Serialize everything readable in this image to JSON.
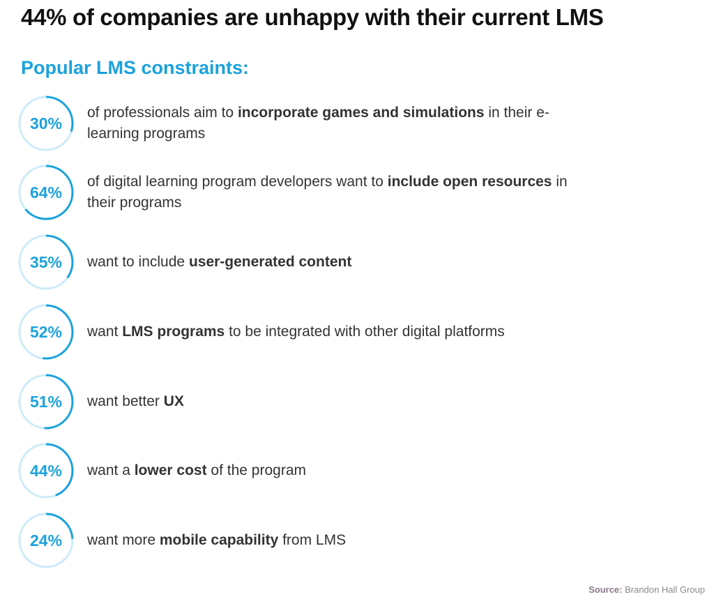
{
  "title": "44% of companies are unhappy with their current LMS",
  "subtitle": "Popular LMS constraints:",
  "colors": {
    "accent": "#1ba2dc",
    "ring_track": "#cdebf8",
    "text": "#333333"
  },
  "chart_data": {
    "type": "radial",
    "items": [
      {
        "label": "30%",
        "value": 30,
        "before": "of professionals aim to ",
        "bold": "incorporate games and simulations",
        "after": " in their e-learning programs"
      },
      {
        "label": "64%",
        "value": 64,
        "before": "of digital learning program developers want to ",
        "bold": "include open resources",
        "after": " in their programs"
      },
      {
        "label": "35%",
        "value": 35,
        "before": "want to include ",
        "bold": "user-generated content",
        "after": ""
      },
      {
        "label": "52%",
        "value": 52,
        "before": "want ",
        "bold": "LMS programs",
        "after": " to be integrated with other digital platforms"
      },
      {
        "label": "51%",
        "value": 51,
        "before": "want better ",
        "bold": "UX",
        "after": ""
      },
      {
        "label": "44%",
        "value": 44,
        "before": "want a ",
        "bold": "lower cost",
        "after": " of the program"
      },
      {
        "label": "24%",
        "value": 24,
        "before": "want more ",
        "bold": "mobile capability",
        "after": " from LMS"
      }
    ]
  },
  "source": {
    "label": "Source:",
    "text": " Brandon Hall Group"
  }
}
